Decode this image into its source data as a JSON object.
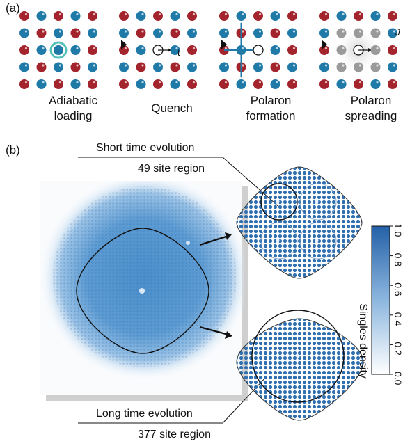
{
  "panel_a": {
    "label": "(a)",
    "stages": [
      {
        "line1": "Adiabatic",
        "line2": "loading"
      },
      {
        "line1": "Quench",
        "line2": ""
      },
      {
        "line1": "Polaron",
        "line2": "formation"
      },
      {
        "line1": "Polaron",
        "line2": "spreading"
      }
    ],
    "time_symbol": "t",
    "hopping_symbol": "J"
  },
  "panel_b": {
    "label": "(b)",
    "short_title": "Short time evolution",
    "short_region": "49 site region",
    "long_title": "Long time evolution",
    "long_region": "377 site region",
    "colorbar": {
      "label": "Singles density",
      "ticks": [
        "0.0",
        "0.2",
        "0.4",
        "0.6",
        "0.8",
        "1.0"
      ]
    }
  },
  "colors": {
    "red_atom": "#a3242c",
    "blue_atom": "#1f7aa8",
    "teal_ring": "#2bb3a8",
    "density_blue": "#2f6fb0",
    "gray_atom": "#9a9a9a"
  }
}
